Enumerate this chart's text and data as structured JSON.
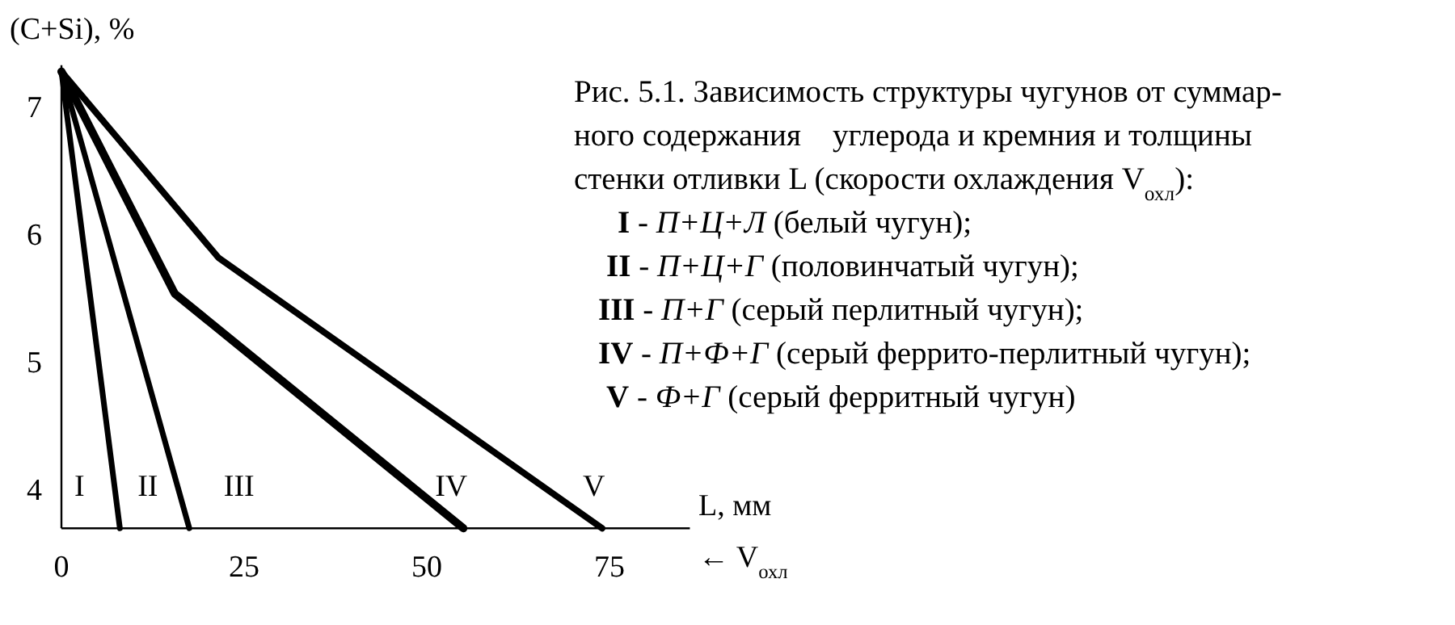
{
  "chart_data": {
    "type": "line",
    "title": "Рис. 5.1. Зависимость структуры чугунов от суммар-\nного содержания    углерода и кремния и толщины\nстенки отливки L (скорости охлаждения V$_{охл}$):",
    "xlabel": "L, мм",
    "ylabel": "(C+Si), %",
    "xlim": [
      0,
      86
    ],
    "ylim": [
      3.72,
      7.35
    ],
    "xticks": [
      0,
      25,
      50,
      75
    ],
    "yticks": [
      4,
      5,
      6,
      7
    ],
    "grid": false,
    "marker": "none",
    "line_style": "solid",
    "series": [
      {
        "color": "#000000",
        "x": [
          0,
          8
        ],
        "values": [
          7.3,
          3.72
        ]
      },
      {
        "color": "#000000",
        "x": [
          0,
          17.5
        ],
        "values": [
          7.3,
          3.72
        ]
      },
      {
        "color": "#000000",
        "x": [
          0,
          15.5,
          55
        ],
        "values": [
          7.3,
          5.56,
          3.72
        ]
      },
      {
        "color": "#000000",
        "x": [
          0,
          21.5,
          74
        ],
        "values": [
          7.3,
          5.84,
          3.72
        ]
      }
    ],
    "annotations": [
      "I",
      "II",
      "III",
      "IV",
      "V",
      "← V$_{охл}$",
      "I - П+Ц+Л (белый чугун);",
      "II - П+Ц+Г (половинчатый чугун);",
      "III - П+Г (серый перлитный чугун);",
      "IV - П+Ф+Г (серый феррито-перлитный чугун);",
      "V - Ф+Г (серый ферритный чугун)"
    ]
  }
}
